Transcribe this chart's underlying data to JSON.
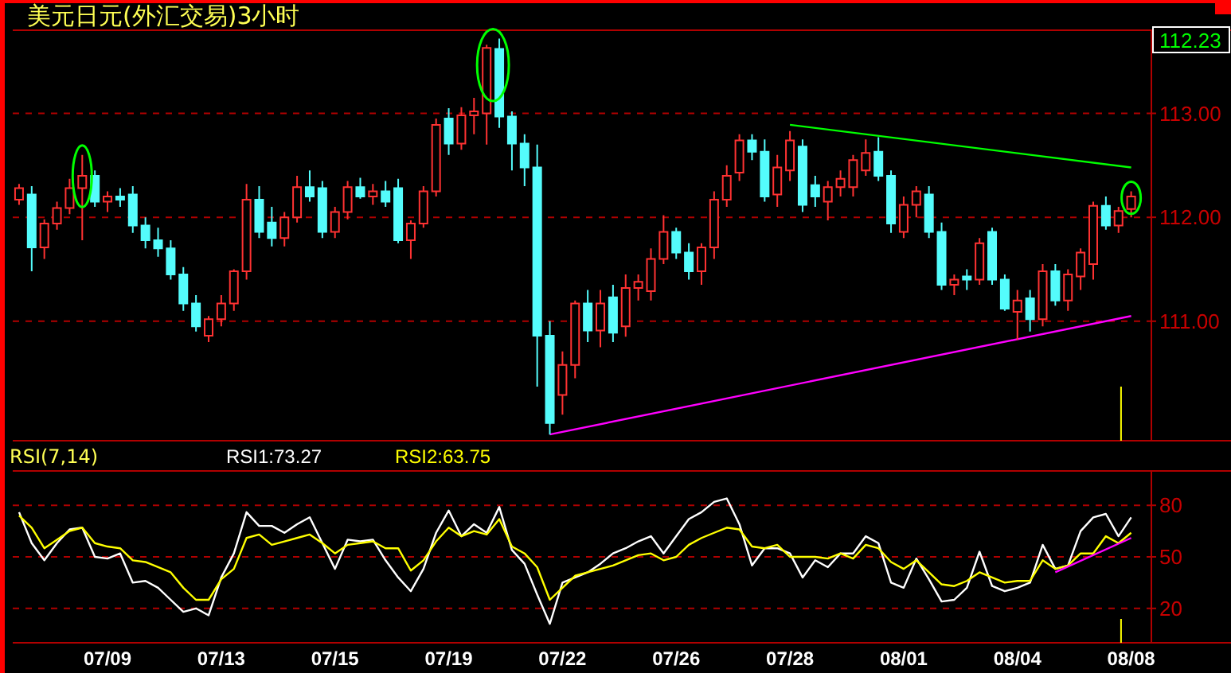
{
  "chart_data": [
    {
      "type": "candlestick",
      "title": "美元日元(外汇交易)3小时",
      "ohlc": [
        [
          112.17,
          112.32,
          112.12,
          112.28
        ],
        [
          112.22,
          112.3,
          111.48,
          111.71
        ],
        [
          111.71,
          111.98,
          111.6,
          111.94
        ],
        [
          111.94,
          112.15,
          111.88,
          112.09
        ],
        [
          112.09,
          112.37,
          112.03,
          112.28
        ],
        [
          112.28,
          112.6,
          111.78,
          112.4
        ],
        [
          112.4,
          112.45,
          112.1,
          112.15
        ],
        [
          112.15,
          112.25,
          112.05,
          112.2
        ],
        [
          112.2,
          112.28,
          112.1,
          112.17
        ],
        [
          112.22,
          112.3,
          111.85,
          111.92
        ],
        [
          111.92,
          112.0,
          111.7,
          111.78
        ],
        [
          111.78,
          111.9,
          111.62,
          111.7
        ],
        [
          111.7,
          111.78,
          111.4,
          111.45
        ],
        [
          111.45,
          111.52,
          111.1,
          111.17
        ],
        [
          111.17,
          111.25,
          110.9,
          110.95
        ],
        [
          110.86,
          111.05,
          110.8,
          111.02
        ],
        [
          111.02,
          111.25,
          110.95,
          111.17
        ],
        [
          111.17,
          111.5,
          111.1,
          111.48
        ],
        [
          111.48,
          112.32,
          111.4,
          112.17
        ],
        [
          112.17,
          112.3,
          111.8,
          111.86
        ],
        [
          111.95,
          112.1,
          111.72,
          111.8
        ],
        [
          111.8,
          112.05,
          111.72,
          112.0
        ],
        [
          112.0,
          112.4,
          111.95,
          112.29
        ],
        [
          112.29,
          112.45,
          112.15,
          112.2
        ],
        [
          112.28,
          112.35,
          111.8,
          111.86
        ],
        [
          111.86,
          112.1,
          111.8,
          112.05
        ],
        [
          112.05,
          112.35,
          111.98,
          112.29
        ],
        [
          112.29,
          112.38,
          112.18,
          112.2
        ],
        [
          112.2,
          112.32,
          112.12,
          112.25
        ],
        [
          112.25,
          112.35,
          112.1,
          112.15
        ],
        [
          112.28,
          112.37,
          111.75,
          111.78
        ],
        [
          111.78,
          111.97,
          111.6,
          111.94
        ],
        [
          111.94,
          112.3,
          111.9,
          112.25
        ],
        [
          112.25,
          112.95,
          112.2,
          112.89
        ],
        [
          112.95,
          113.05,
          112.6,
          112.71
        ],
        [
          112.71,
          113.06,
          112.65,
          112.98
        ],
        [
          112.98,
          113.15,
          112.8,
          113.02
        ],
        [
          113.0,
          113.66,
          112.7,
          113.63
        ],
        [
          113.62,
          113.72,
          112.86,
          112.97
        ],
        [
          112.97,
          113.02,
          112.45,
          112.71
        ],
        [
          112.71,
          112.8,
          112.3,
          112.48
        ],
        [
          112.48,
          112.7,
          110.37,
          110.86
        ],
        [
          110.86,
          111.0,
          109.91,
          110.02
        ],
        [
          110.29,
          110.71,
          110.1,
          110.58
        ],
        [
          110.58,
          111.2,
          110.45,
          111.17
        ],
        [
          111.17,
          111.3,
          110.8,
          110.91
        ],
        [
          110.91,
          111.3,
          110.75,
          111.17
        ],
        [
          111.23,
          111.35,
          110.8,
          110.89
        ],
        [
          110.95,
          111.45,
          110.85,
          111.32
        ],
        [
          111.32,
          111.45,
          111.2,
          111.38
        ],
        [
          111.29,
          111.7,
          111.2,
          111.6
        ],
        [
          111.6,
          112.02,
          111.55,
          111.86
        ],
        [
          111.86,
          111.9,
          111.6,
          111.66
        ],
        [
          111.66,
          111.75,
          111.4,
          111.48
        ],
        [
          111.48,
          111.75,
          111.35,
          111.71
        ],
        [
          111.71,
          112.25,
          111.6,
          112.17
        ],
        [
          112.17,
          112.5,
          112.1,
          112.4
        ],
        [
          112.43,
          112.8,
          112.35,
          112.74
        ],
        [
          112.74,
          112.8,
          112.55,
          112.63
        ],
        [
          112.63,
          112.75,
          112.15,
          112.2
        ],
        [
          112.22,
          112.6,
          112.1,
          112.48
        ],
        [
          112.45,
          112.83,
          112.35,
          112.74
        ],
        [
          112.68,
          112.75,
          112.05,
          112.12
        ],
        [
          112.31,
          112.4,
          112.1,
          112.2
        ],
        [
          112.15,
          112.35,
          111.97,
          112.29
        ],
        [
          112.29,
          112.45,
          112.2,
          112.37
        ],
        [
          112.29,
          112.6,
          112.2,
          112.55
        ],
        [
          112.45,
          112.75,
          112.4,
          112.62
        ],
        [
          112.63,
          112.77,
          112.35,
          112.4
        ],
        [
          112.4,
          112.45,
          111.85,
          111.94
        ],
        [
          111.86,
          112.2,
          111.8,
          112.12
        ],
        [
          112.12,
          112.3,
          112.0,
          112.25
        ],
        [
          112.22,
          112.3,
          111.8,
          111.86
        ],
        [
          111.86,
          111.95,
          111.3,
          111.35
        ],
        [
          111.35,
          111.45,
          111.25,
          111.4
        ],
        [
          111.43,
          111.5,
          111.3,
          111.4
        ],
        [
          111.4,
          111.8,
          111.35,
          111.75
        ],
        [
          111.86,
          111.9,
          111.35,
          111.4
        ],
        [
          111.4,
          111.45,
          111.1,
          111.12
        ],
        [
          111.09,
          111.3,
          110.82,
          111.2
        ],
        [
          111.22,
          111.3,
          110.9,
          111.02
        ],
        [
          111.02,
          111.55,
          110.95,
          111.48
        ],
        [
          111.48,
          111.55,
          111.15,
          111.2
        ],
        [
          111.2,
          111.5,
          111.1,
          111.45
        ],
        [
          111.43,
          111.7,
          111.3,
          111.66
        ],
        [
          111.55,
          112.15,
          111.4,
          112.11
        ],
        [
          112.11,
          112.2,
          111.88,
          111.92
        ],
        [
          111.92,
          112.1,
          111.85,
          112.06
        ],
        [
          112.08,
          112.25,
          112.0,
          112.2
        ]
      ],
      "series": [
        {
          "type": "line",
          "color": "#00ff00",
          "values": [
            null,
            null,
            null,
            null,
            null,
            null,
            null,
            null,
            null,
            null,
            null,
            null,
            null,
            null,
            null,
            null,
            null,
            null,
            null,
            null,
            null,
            null,
            null,
            null,
            null,
            null,
            null,
            null,
            null,
            null,
            null,
            null,
            null,
            null,
            null,
            null,
            null,
            null,
            null,
            null,
            null,
            null,
            null,
            null,
            null,
            null,
            null,
            null,
            null,
            null,
            null,
            null,
            null,
            null,
            null,
            null,
            null,
            null,
            null,
            null,
            null,
            112.89,
            null,
            null,
            null,
            null,
            null,
            null,
            null,
            null,
            null,
            null,
            null,
            null,
            null,
            null,
            null,
            null,
            null,
            null,
            null,
            null,
            null,
            null,
            null,
            null,
            null,
            null,
            112.48
          ]
        },
        {
          "type": "line",
          "color": "#ff00ff",
          "values": [
            null,
            null,
            null,
            null,
            null,
            null,
            null,
            null,
            null,
            null,
            null,
            null,
            null,
            null,
            null,
            null,
            null,
            null,
            null,
            null,
            null,
            null,
            null,
            null,
            null,
            null,
            null,
            null,
            null,
            null,
            null,
            null,
            null,
            null,
            null,
            null,
            null,
            null,
            null,
            null,
            null,
            null,
            109.91,
            null,
            null,
            null,
            null,
            null,
            null,
            null,
            null,
            null,
            null,
            null,
            null,
            null,
            null,
            null,
            null,
            null,
            null,
            null,
            null,
            null,
            null,
            null,
            null,
            null,
            null,
            null,
            null,
            null,
            null,
            null,
            null,
            null,
            null,
            null,
            null,
            null,
            null,
            null,
            null,
            null,
            null,
            null,
            null,
            null,
            111.05
          ]
        }
      ],
      "ylim": [
        109.85,
        113.8
      ],
      "yticks": [
        {
          "value": 111,
          "label": "111.00"
        },
        {
          "value": 112,
          "label": "112.00"
        },
        {
          "value": 113,
          "label": "113.00"
        }
      ],
      "grid": "y",
      "tick_labels": "y",
      "annotations": [
        "112.23"
      ]
    },
    {
      "type": "line",
      "title": "RSI(7,14)",
      "categories": [
        null,
        null,
        null,
        null,
        null,
        null,
        null,
        "07/09",
        null,
        null,
        null,
        null,
        null,
        null,
        null,
        null,
        "07/13",
        null,
        null,
        null,
        null,
        null,
        null,
        null,
        null,
        "07/15",
        null,
        null,
        null,
        null,
        null,
        null,
        null,
        null,
        "07/19",
        null,
        null,
        null,
        null,
        null,
        null,
        null,
        null,
        "07/22",
        null,
        null,
        null,
        null,
        null,
        null,
        null,
        null,
        "07/26",
        null,
        null,
        null,
        null,
        null,
        null,
        null,
        null,
        "07/28",
        null,
        null,
        null,
        null,
        null,
        null,
        null,
        null,
        "08/01",
        null,
        null,
        null,
        null,
        null,
        null,
        null,
        null,
        "08/04",
        null,
        null,
        null,
        null,
        null,
        null,
        null,
        null,
        "08/08"
      ],
      "series": [
        {
          "name": "RSI1:73.27",
          "color": "#ffffff",
          "values": [
            76,
            58,
            48,
            58,
            66,
            67,
            50,
            49,
            52,
            35,
            36,
            32,
            25,
            18,
            20,
            16,
            38,
            52,
            76,
            68,
            68,
            64,
            69,
            73,
            58,
            43,
            60,
            59,
            60,
            48,
            38,
            30,
            43,
            64,
            77,
            62,
            69,
            64,
            79,
            54,
            46,
            28,
            11,
            35,
            38,
            41,
            46,
            52,
            55,
            59,
            62,
            52,
            62,
            72,
            76,
            82,
            84,
            69,
            45,
            55,
            55,
            52,
            38,
            48,
            44,
            52,
            52,
            62,
            58,
            35,
            32,
            49,
            37,
            24,
            25,
            32,
            53,
            33,
            30,
            32,
            35,
            57,
            43,
            45,
            65,
            73,
            75,
            62,
            73
          ]
        },
        {
          "name": "RSI2:63.75",
          "color": "#ffff00",
          "values": [
            74,
            67,
            55,
            60,
            65,
            67,
            58,
            56,
            55,
            48,
            47,
            44,
            41,
            32,
            25,
            25,
            37,
            43,
            61,
            63,
            57,
            59,
            61,
            63,
            58,
            52,
            57,
            58,
            59,
            55,
            55,
            42,
            48,
            59,
            67,
            62,
            65,
            63,
            72,
            56,
            52,
            44,
            25,
            32,
            39,
            41,
            43,
            45,
            48,
            51,
            52,
            48,
            50,
            57,
            61,
            64,
            67,
            66,
            56,
            55,
            57,
            50,
            50,
            50,
            49,
            52,
            49,
            57,
            55,
            47,
            43,
            48,
            41,
            34,
            33,
            36,
            41,
            38,
            35,
            36,
            36,
            48,
            43,
            45,
            52,
            52,
            62,
            58,
            64
          ]
        },
        {
          "color": "#ff00ff",
          "values": [
            null,
            null,
            null,
            null,
            null,
            null,
            null,
            null,
            null,
            null,
            null,
            null,
            null,
            null,
            null,
            null,
            null,
            null,
            null,
            null,
            null,
            null,
            null,
            null,
            null,
            null,
            null,
            null,
            null,
            null,
            null,
            null,
            null,
            null,
            null,
            null,
            null,
            null,
            null,
            null,
            null,
            null,
            null,
            null,
            null,
            null,
            null,
            null,
            null,
            null,
            null,
            null,
            null,
            null,
            null,
            null,
            null,
            null,
            null,
            null,
            null,
            null,
            null,
            null,
            null,
            null,
            null,
            null,
            null,
            null,
            null,
            null,
            null,
            null,
            null,
            null,
            null,
            null,
            null,
            null,
            null,
            null,
            41,
            null,
            null,
            null,
            null,
            null,
            61
          ]
        }
      ],
      "ylim": [
        0,
        100
      ],
      "yticks": [
        20,
        50,
        80
      ],
      "grid": "y",
      "legend": "top"
    }
  ]
}
